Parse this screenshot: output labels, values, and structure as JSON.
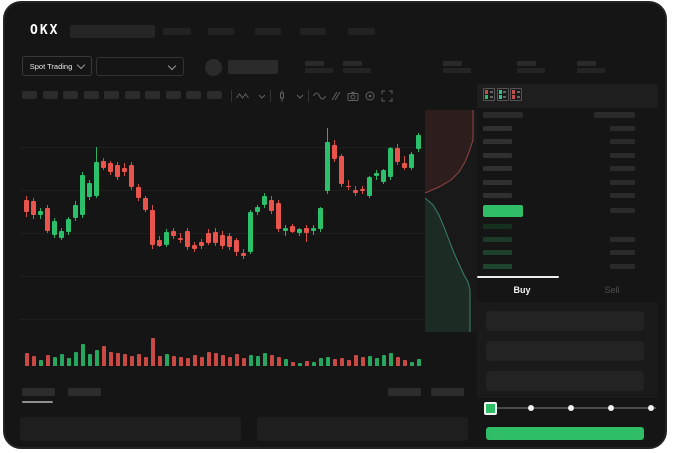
{
  "app": {
    "logo_text": "OKX"
  },
  "header": {
    "nav_placeholder_count": 5
  },
  "market_bar": {
    "market_selector_label": "Spot Trading",
    "stat_placeholder_count": 5
  },
  "chart_toolbar": {
    "interval_placeholder_count": 10,
    "icons": [
      "indicators",
      "chevron-down",
      "candle-style",
      "chevron-down",
      "line-tool",
      "draw-tool",
      "camera",
      "settings",
      "fullscreen"
    ]
  },
  "orderbook": {
    "view_toggles": [
      "combined",
      "bids-only",
      "asks-only"
    ],
    "ask_row_count": 6,
    "bid_row_count": 4,
    "bid_row_colors": [
      "#16301f",
      "#1b3a28",
      "#1d402c",
      "#1e452f"
    ],
    "ask_bar_color": "#303030",
    "amount_bar_color": "#2b2b2b",
    "last_price_highlight_color": "#2fbd68"
  },
  "trade_panel": {
    "buy_tab_label": "Buy",
    "sell_tab_label": "Sell",
    "order_input_count": 3,
    "slider_stop_count": 5,
    "submit_button_color": "#2fbd68"
  },
  "bottom_panel": {
    "tab_placeholder_count": 4,
    "panel_placeholder_count": 2
  },
  "colors": {
    "background": "#151515",
    "panel": "#1e1e1e",
    "placeholder": "#272727",
    "up_green": "#2cc06c",
    "down_red": "#e9544d",
    "bright_green": "#2fbd68",
    "text_primary": "#f2f2f2",
    "text_muted": "#4f4f4f"
  },
  "chart_data": [
    {
      "type": "candlestick",
      "title": "",
      "value_range": [
        0,
        100
      ],
      "grid": true,
      "candles": [
        [
          43,
          46,
          31,
          34
        ],
        [
          42,
          44,
          29,
          32
        ],
        [
          32,
          37,
          29,
          35
        ],
        [
          37,
          39,
          19,
          21
        ],
        [
          18,
          30,
          16,
          28
        ],
        [
          16,
          23,
          14,
          21
        ],
        [
          20,
          31,
          18,
          29
        ],
        [
          30,
          42,
          28,
          39
        ],
        [
          32,
          63,
          30,
          61
        ],
        [
          45,
          57,
          43,
          55
        ],
        [
          46,
          81,
          44,
          70
        ],
        [
          71,
          73,
          64,
          66
        ],
        [
          69,
          71,
          61,
          63
        ],
        [
          68,
          70,
          57,
          59
        ],
        [
          66,
          69,
          60,
          63
        ],
        [
          68,
          70,
          50,
          52
        ],
        [
          52,
          54,
          42,
          44
        ],
        [
          44,
          46,
          34,
          36
        ],
        [
          36,
          39,
          8,
          11
        ],
        [
          14,
          17,
          9,
          10
        ],
        [
          11,
          22,
          9,
          20
        ],
        [
          21,
          23,
          15,
          17
        ],
        [
          16,
          19,
          12,
          14
        ],
        [
          21,
          23,
          7,
          9
        ],
        [
          11,
          13,
          6,
          8
        ],
        [
          13,
          15,
          8,
          10
        ],
        [
          19,
          22,
          11,
          12
        ],
        [
          20,
          23,
          10,
          12
        ],
        [
          18,
          21,
          8,
          10
        ],
        [
          17,
          19,
          7,
          9
        ],
        [
          14,
          16,
          3,
          6
        ],
        [
          5,
          8,
          1,
          3
        ],
        [
          6,
          36,
          4,
          34
        ],
        [
          34,
          39,
          32,
          38
        ],
        [
          39,
          48,
          37,
          46
        ],
        [
          43,
          46,
          33,
          35
        ],
        [
          41,
          43,
          20,
          22
        ],
        [
          21,
          25,
          17,
          23
        ],
        [
          24,
          26,
          19,
          20
        ],
        [
          19,
          23,
          17,
          22
        ],
        [
          23,
          25,
          13,
          19
        ],
        [
          21,
          25,
          18,
          23
        ],
        [
          22,
          38,
          20,
          37
        ],
        [
          49,
          94,
          47,
          84
        ],
        [
          82,
          86,
          70,
          72
        ],
        [
          74,
          76,
          52,
          54
        ],
        [
          53,
          57,
          50,
          52
        ],
        [
          50,
          53,
          46,
          48
        ],
        [
          51,
          53,
          47,
          49
        ],
        [
          46,
          60,
          44,
          59
        ],
        [
          60,
          64,
          57,
          62
        ],
        [
          56,
          65,
          54,
          64
        ],
        [
          59,
          81,
          57,
          80
        ],
        [
          80,
          83,
          68,
          70
        ],
        [
          69,
          74,
          64,
          66
        ],
        [
          66,
          77,
          64,
          76
        ],
        [
          79,
          91,
          77,
          89
        ]
      ],
      "volumes": [
        13,
        10,
        6,
        11,
        9,
        12,
        8,
        14,
        22,
        12,
        16,
        20,
        14,
        13,
        12,
        10,
        12,
        9,
        28,
        10,
        12,
        10,
        9,
        8,
        11,
        9,
        14,
        13,
        11,
        9,
        12,
        8,
        11,
        10,
        13,
        11,
        9,
        7,
        4,
        3,
        5,
        4,
        8,
        9,
        7,
        8,
        6,
        11,
        9,
        10,
        8,
        11,
        13,
        9,
        6,
        4,
        7
      ]
    },
    {
      "type": "area",
      "name": "orderbook-depth",
      "series": [
        {
          "name": "asks",
          "stroke": "#8e4747",
          "fill": "rgba(110,45,45,0.25)",
          "points": [
            [
              48,
              0
            ],
            [
              48,
              30
            ],
            [
              44,
              42
            ],
            [
              40,
              52
            ],
            [
              34,
              62
            ],
            [
              26,
              70
            ],
            [
              14,
              77
            ],
            [
              0,
              83
            ]
          ]
        },
        {
          "name": "bids",
          "stroke": "#3c7f6b",
          "fill": "rgba(45,110,80,0.22)",
          "points": [
            [
              0,
              88
            ],
            [
              8,
              95
            ],
            [
              14,
              105
            ],
            [
              19,
              117
            ],
            [
              24,
              130
            ],
            [
              29,
              143
            ],
            [
              34,
              154
            ],
            [
              39,
              165
            ],
            [
              43,
              172
            ],
            [
              45,
              180
            ],
            [
              45,
              222
            ]
          ]
        }
      ]
    }
  ]
}
